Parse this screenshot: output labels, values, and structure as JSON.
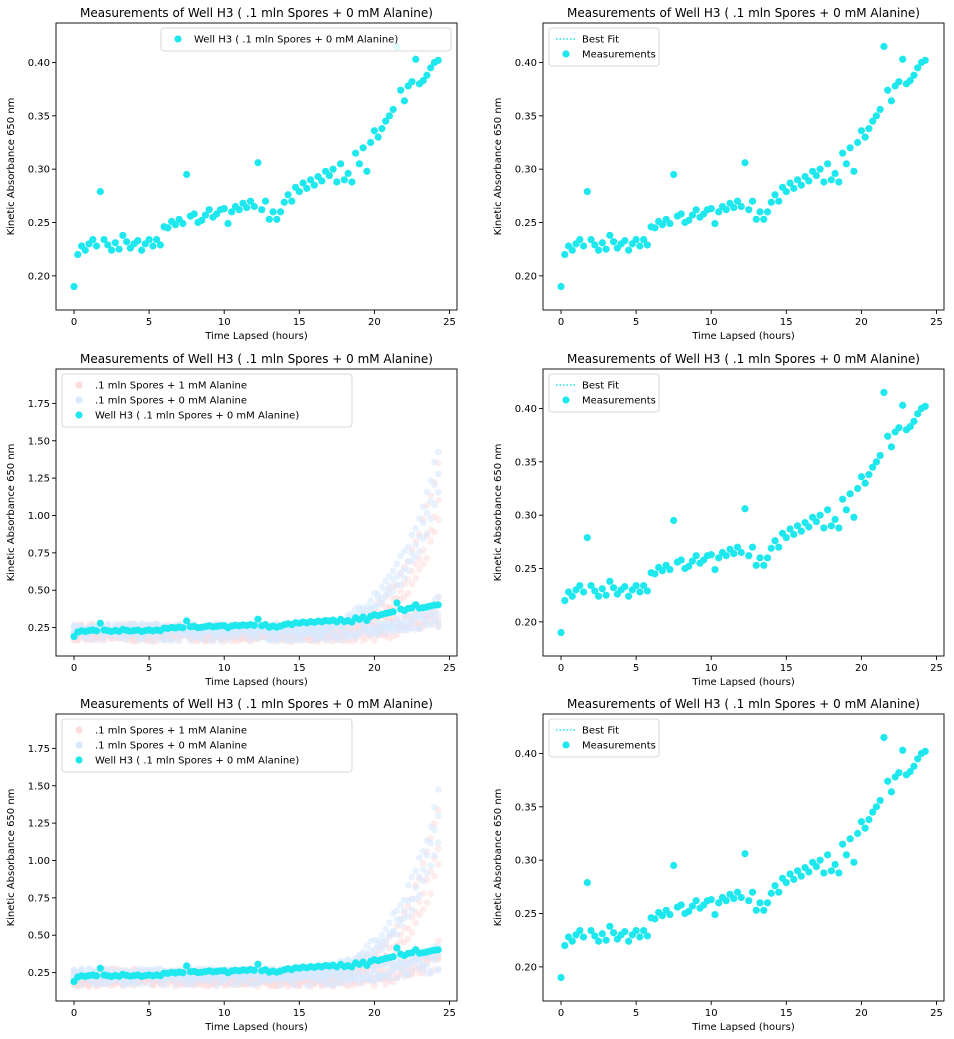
{
  "colors": {
    "cyan": "#1ee8ee",
    "bg_series_1mm": "#ffdcdc",
    "bg_series_0mm": "#d7e9ff",
    "axis": "#000000"
  },
  "subplots": [
    {
      "id": "r1c1",
      "mode": "single",
      "title": "Measurements of Well  H3 ( .1  mln Spores +  0 mM Alanine)",
      "xlabel": "Time Lapsed (hours)",
      "ylabel": "Kinetic Absorbance 650 nm",
      "xlim": [
        -1.2,
        25.5
      ],
      "ylim": [
        0.168,
        0.437
      ],
      "xticks": [
        0,
        5,
        10,
        15,
        20,
        25
      ],
      "yticks": [
        0.2,
        0.25,
        0.3,
        0.35,
        0.4
      ],
      "yticklabels": [
        "0.20",
        "0.25",
        "0.30",
        "0.35",
        "0.40"
      ],
      "legend": {
        "position": "upper right",
        "entries": [
          {
            "label": "Well  H3 ( .1  mln Spores +  0 mM Alanine)",
            "kind": "dot",
            "color": "#1ee8ee"
          }
        ]
      }
    },
    {
      "id": "r1c2",
      "mode": "fit",
      "title": "Measurements of Well  H3 ( .1  mln Spores +  0 mM Alanine)",
      "xlabel": "Time Lapsed (hours)",
      "ylabel": "Kinetic Absorbance 650 nm",
      "xlim": [
        -1.2,
        25.5
      ],
      "ylim": [
        0.168,
        0.437
      ],
      "xticks": [
        0,
        5,
        10,
        15,
        20,
        25
      ],
      "yticks": [
        0.2,
        0.25,
        0.3,
        0.35,
        0.4
      ],
      "yticklabels": [
        "0.20",
        "0.25",
        "0.30",
        "0.35",
        "0.40"
      ],
      "legend": {
        "position": "upper left",
        "entries": [
          {
            "label": "Best Fit",
            "kind": "dotted-line",
            "color": "#1ee8ee"
          },
          {
            "label": "Measurements",
            "kind": "dot",
            "color": "#1ee8ee"
          }
        ]
      }
    },
    {
      "id": "r2c1",
      "mode": "overlay",
      "title": "Measurements of Well  H3 ( .1  mln Spores +  0 mM Alanine)",
      "xlabel": "Time Lapsed (hours)",
      "ylabel": "Kinetic Absorbance 650 nm",
      "xlim": [
        -1.2,
        25.5
      ],
      "ylim": [
        0.06,
        1.98
      ],
      "xticks": [
        0,
        5,
        10,
        15,
        20,
        25
      ],
      "yticks": [
        0.25,
        0.5,
        0.75,
        1.0,
        1.25,
        1.5,
        1.75
      ],
      "yticklabels": [
        "0.25",
        "0.50",
        "0.75",
        "1.00",
        "1.25",
        "1.50",
        "1.75"
      ],
      "legend": {
        "position": "upper left",
        "entries": [
          {
            "label": ".1  mln Spores + 1 mM Alanine",
            "kind": "dot",
            "color": "#ffdcdc"
          },
          {
            "label": ".1  mln Spores +  0 mM Alanine",
            "kind": "dot",
            "color": "#d7e9ff"
          },
          {
            "label": "Well  H3 ( .1  mln Spores +  0 mM Alanine)",
            "kind": "dot",
            "color": "#1ee8ee"
          }
        ]
      }
    },
    {
      "id": "r2c2",
      "mode": "fit",
      "title": "Measurements of Well  H3 ( .1  mln Spores +  0 mM Alanine)",
      "xlabel": "Time Lapsed (hours)",
      "ylabel": "Kinetic Absorbance 650 nm",
      "xlim": [
        -1.2,
        25.5
      ],
      "ylim": [
        0.168,
        0.437
      ],
      "xticks": [
        0,
        5,
        10,
        15,
        20,
        25
      ],
      "yticks": [
        0.2,
        0.25,
        0.3,
        0.35,
        0.4
      ],
      "yticklabels": [
        "0.20",
        "0.25",
        "0.30",
        "0.35",
        "0.40"
      ],
      "legend": {
        "position": "upper left",
        "entries": [
          {
            "label": "Best Fit",
            "kind": "dotted-line",
            "color": "#1ee8ee"
          },
          {
            "label": "Measurements",
            "kind": "dot",
            "color": "#1ee8ee"
          }
        ]
      }
    },
    {
      "id": "r3c1",
      "mode": "overlay",
      "title": "Measurements of Well  H3 ( .1  mln Spores +  0 mM Alanine)",
      "xlabel": "Time Lapsed (hours)",
      "ylabel": "Kinetic Absorbance 650 nm",
      "xlim": [
        -1.2,
        25.5
      ],
      "ylim": [
        0.06,
        1.98
      ],
      "xticks": [
        0,
        5,
        10,
        15,
        20,
        25
      ],
      "yticks": [
        0.25,
        0.5,
        0.75,
        1.0,
        1.25,
        1.5,
        1.75
      ],
      "yticklabels": [
        "0.25",
        "0.50",
        "0.75",
        "1.00",
        "1.25",
        "1.50",
        "1.75"
      ],
      "legend": {
        "position": "upper left",
        "entries": [
          {
            "label": ".1  mln Spores + 1 mM Alanine",
            "kind": "dot",
            "color": "#ffdcdc"
          },
          {
            "label": ".1  mln Spores +  0 mM Alanine",
            "kind": "dot",
            "color": "#d7e9ff"
          },
          {
            "label": "Well  H3 ( .1  mln Spores +  0 mM Alanine)",
            "kind": "dot",
            "color": "#1ee8ee"
          }
        ]
      }
    },
    {
      "id": "r3c2",
      "mode": "fit",
      "title": "Measurements of Well  H3 ( .1  mln Spores +  0 mM Alanine)",
      "xlabel": "Time Lapsed (hours)",
      "ylabel": "Kinetic Absorbance 650 nm",
      "xlim": [
        -1.2,
        25.5
      ],
      "ylim": [
        0.168,
        0.437
      ],
      "xticks": [
        0,
        5,
        10,
        15,
        20,
        25
      ],
      "yticks": [
        0.2,
        0.25,
        0.3,
        0.35,
        0.4
      ],
      "yticklabels": [
        "0.20",
        "0.25",
        "0.30",
        "0.35",
        "0.40"
      ],
      "legend": {
        "position": "upper left",
        "entries": [
          {
            "label": "Best Fit",
            "kind": "dotted-line",
            "color": "#1ee8ee"
          },
          {
            "label": "Measurements",
            "kind": "dot",
            "color": "#1ee8ee"
          }
        ]
      }
    }
  ],
  "chart_data": {
    "type": "scatter",
    "series": [
      {
        "name": "Well  H3 ( .1  mln Spores +  0 mM Alanine)",
        "x": [
          0.0,
          0.25,
          0.5,
          0.75,
          1.0,
          1.25,
          1.5,
          1.75,
          2.0,
          2.25,
          2.5,
          2.75,
          3.0,
          3.25,
          3.5,
          3.75,
          4.0,
          4.25,
          4.5,
          4.75,
          5.0,
          5.25,
          5.5,
          5.75,
          6.0,
          6.25,
          6.5,
          6.75,
          7.0,
          7.25,
          7.5,
          7.75,
          8.0,
          8.25,
          8.5,
          8.75,
          9.0,
          9.25,
          9.5,
          9.75,
          10.0,
          10.25,
          10.5,
          10.75,
          11.0,
          11.25,
          11.5,
          11.75,
          12.0,
          12.25,
          12.5,
          12.75,
          13.0,
          13.25,
          13.5,
          13.75,
          14.0,
          14.25,
          14.5,
          14.75,
          15.0,
          15.25,
          15.5,
          15.75,
          16.0,
          16.25,
          16.5,
          16.75,
          17.0,
          17.25,
          17.5,
          17.75,
          18.0,
          18.25,
          18.5,
          18.75,
          19.0,
          19.25,
          19.5,
          19.75,
          20.0,
          20.25,
          20.5,
          20.75,
          21.0,
          21.25,
          21.5,
          21.75,
          22.0,
          22.25,
          22.5,
          22.75,
          23.0,
          23.25,
          23.5,
          23.75,
          24.0,
          24.25
        ],
        "y": [
          0.19,
          0.22,
          0.228,
          0.224,
          0.23,
          0.234,
          0.228,
          0.279,
          0.234,
          0.229,
          0.224,
          0.231,
          0.225,
          0.238,
          0.232,
          0.226,
          0.23,
          0.233,
          0.224,
          0.23,
          0.234,
          0.228,
          0.234,
          0.229,
          0.246,
          0.245,
          0.251,
          0.248,
          0.253,
          0.249,
          0.295,
          0.256,
          0.258,
          0.25,
          0.252,
          0.257,
          0.262,
          0.255,
          0.258,
          0.262,
          0.263,
          0.249,
          0.26,
          0.265,
          0.262,
          0.268,
          0.264,
          0.27,
          0.265,
          0.306,
          0.262,
          0.27,
          0.253,
          0.26,
          0.253,
          0.26,
          0.269,
          0.276,
          0.27,
          0.283,
          0.279,
          0.287,
          0.282,
          0.29,
          0.285,
          0.293,
          0.289,
          0.298,
          0.294,
          0.3,
          0.288,
          0.305,
          0.29,
          0.296,
          0.288,
          0.315,
          0.305,
          0.32,
          0.298,
          0.325,
          0.336,
          0.33,
          0.338,
          0.345,
          0.35,
          0.356,
          0.415,
          0.374,
          0.364,
          0.378,
          0.382,
          0.403,
          0.38,
          0.383,
          0.388,
          0.395,
          0.4,
          0.402
        ]
      }
    ]
  }
}
